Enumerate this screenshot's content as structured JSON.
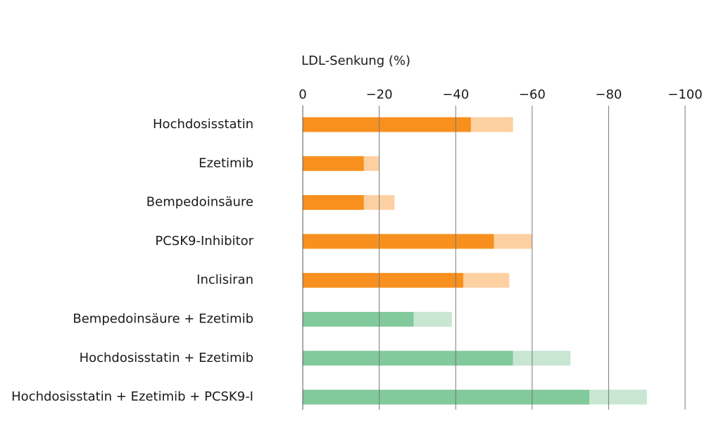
{
  "chart_data": {
    "type": "bar",
    "orientation": "horizontal",
    "stacked": true,
    "x_label": "LDL-Senkung (%)",
    "categories": [
      "Hochdosisstatin",
      "Ezetimib",
      "Bempedoinsäure",
      "PCSK9-Inhibitor",
      "Inclisiran",
      "Bempedoinsäure + Ezetimib",
      "Hochdosisstatin + Ezetimib",
      "Hochdosisstatin + Ezetimib + PCSK9-I"
    ],
    "series": [
      {
        "values": [
          -44,
          -16,
          -16,
          -50,
          -42,
          -29,
          -55,
          -75
        ],
        "colors": [
          "#f7901e",
          "#f7901e",
          "#f7901e",
          "#f7901e",
          "#f7901e",
          "#82c99b",
          "#82c99b",
          "#82c99b"
        ]
      },
      {
        "values": [
          -11,
          -4,
          -8,
          -10,
          -12,
          -10,
          -15,
          -15
        ],
        "colors": [
          "#fdd0a2",
          "#fdd0a2",
          "#fdd0a2",
          "#fdd0a2",
          "#fdd0a2",
          "#c8e6d2",
          "#c8e6d2",
          "#c8e6d2"
        ]
      }
    ],
    "xlim": [
      0,
      -100
    ],
    "xticks": [
      0,
      {
        "value": -20,
        "label": "−20"
      },
      {
        "value": -40,
        "label": "−40"
      },
      {
        "value": -60,
        "label": "−60"
      },
      {
        "value": -80,
        "label": "−80"
      },
      {
        "value": -100,
        "label": "−100"
      }
    ],
    "grid": true
  }
}
